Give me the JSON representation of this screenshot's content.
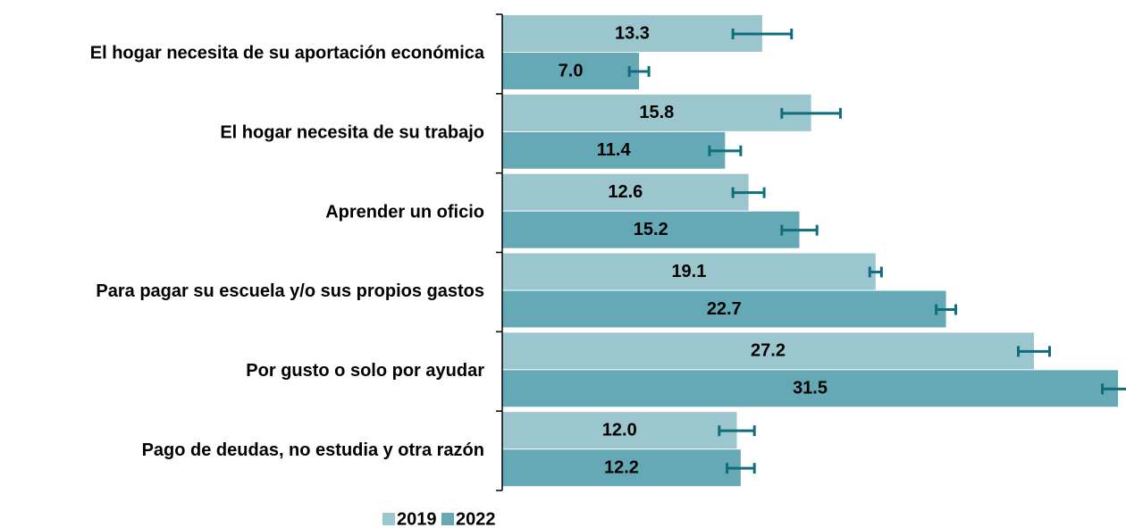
{
  "chart_data": {
    "type": "bar",
    "orientation": "horizontal",
    "categories": [
      "El hogar necesita de su aportación económica",
      "El hogar necesita de su trabajo",
      "Aprender un oficio",
      "Para pagar su escuela y/o sus propios gastos",
      "Por gusto o solo por ayudar",
      "Pago de deudas, no estudia y otra razón"
    ],
    "series": [
      {
        "name": "2019",
        "color": "#9cc6cd",
        "values": [
          13.3,
          15.8,
          12.6,
          19.1,
          27.2,
          12.0
        ],
        "value_labels": [
          "13.3",
          "15.8",
          "12.6",
          "19.1",
          "27.2",
          "12.0"
        ],
        "errors": [
          1.5,
          1.5,
          0.8,
          0.3,
          0.8,
          0.9
        ]
      },
      {
        "name": "2022",
        "color": "#66a9b6",
        "values": [
          7.0,
          11.4,
          15.2,
          22.7,
          31.5,
          12.2
        ],
        "value_labels": [
          "7.0",
          "11.4",
          "15.2",
          "22.7",
          "31.5",
          "12.2"
        ],
        "errors": [
          0.5,
          0.8,
          0.9,
          0.5,
          0.8,
          0.7
        ]
      }
    ],
    "error_color": "#0f6d7c",
    "xlim": [
      0,
      32
    ]
  }
}
